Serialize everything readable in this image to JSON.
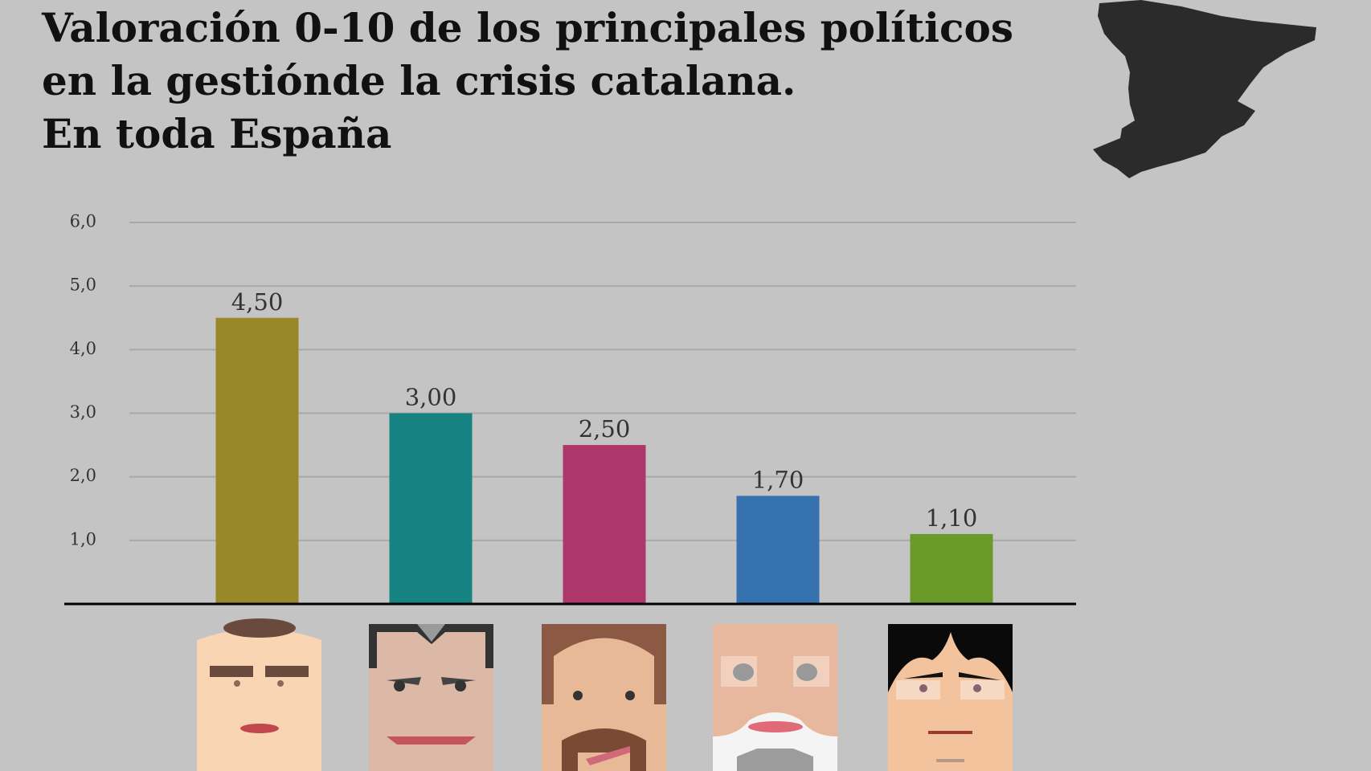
{
  "chart_data": {
    "type": "bar",
    "title": [
      "Valoración 0-10 de los principales políticos",
      "en la gestiónde la crisis catalana.",
      "En toda España"
    ],
    "categories": [
      null,
      null,
      null,
      null,
      null
    ],
    "values": [
      4.5,
      3.0,
      2.5,
      1.7,
      1.1
    ],
    "value_labels": [
      "4,50",
      "3,00",
      "2,50",
      "1,70",
      "1,10"
    ],
    "colors": [
      "#9a8828",
      "#178282",
      "#ad376b",
      "#3671b0",
      "#6a9a2a"
    ],
    "ylim": [
      0,
      6
    ],
    "yticks": [
      {
        "value": 1,
        "label": "1,0"
      },
      {
        "value": 2,
        "label": "2,0"
      },
      {
        "value": 3,
        "label": "3,0"
      },
      {
        "value": 4,
        "label": "4,0"
      },
      {
        "value": 5,
        "label": "5,0"
      },
      {
        "value": 6,
        "label": "6,0"
      }
    ],
    "grid": true
  }
}
